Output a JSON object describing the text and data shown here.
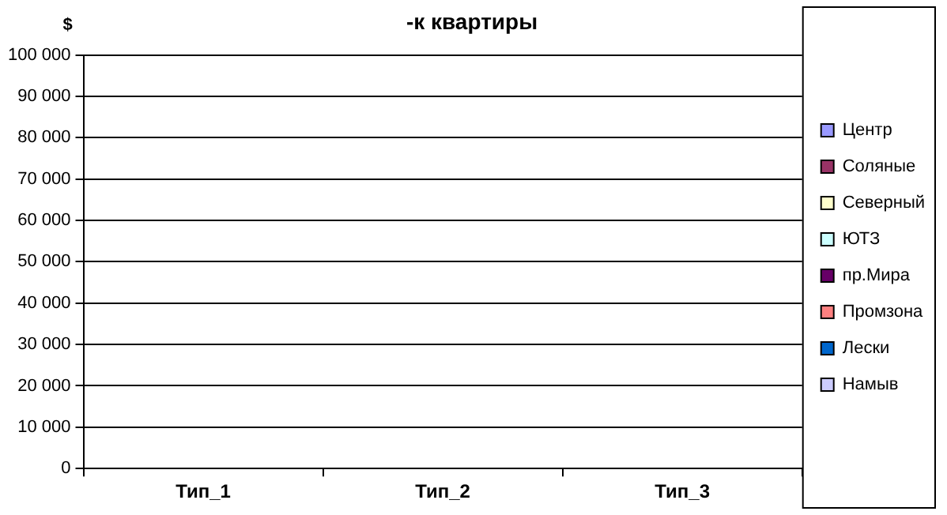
{
  "chart_data": {
    "type": "bar",
    "title": "-к квартиры",
    "ylabel": "$",
    "categories": [
      "Тип_1",
      "Тип_2",
      "Тип_3"
    ],
    "series": [
      {
        "name": "Центр",
        "color": "#9999ff",
        "values": [
          0,
          0,
          0
        ]
      },
      {
        "name": "Соляные",
        "color": "#993366",
        "values": [
          0,
          0,
          0
        ]
      },
      {
        "name": "Северный",
        "color": "#ffffcc",
        "values": [
          0,
          0,
          0
        ]
      },
      {
        "name": "ЮТЗ",
        "color": "#ccffff",
        "values": [
          0,
          0,
          0
        ]
      },
      {
        "name": "пр.Мира",
        "color": "#660066",
        "values": [
          0,
          0,
          0
        ]
      },
      {
        "name": "Промзона",
        "color": "#ff8080",
        "values": [
          0,
          0,
          0
        ]
      },
      {
        "name": "Лески",
        "color": "#0066cc",
        "values": [
          0,
          0,
          0
        ]
      },
      {
        "name": "Намыв",
        "color": "#ccccff",
        "values": [
          0,
          0,
          0
        ]
      }
    ],
    "ylim": [
      0,
      100000
    ],
    "yticks": [
      {
        "value": 0,
        "label": "0"
      },
      {
        "value": 10000,
        "label": "10 000"
      },
      {
        "value": 20000,
        "label": "20 000"
      },
      {
        "value": 30000,
        "label": "30 000"
      },
      {
        "value": 40000,
        "label": "40 000"
      },
      {
        "value": 50000,
        "label": "50 000"
      },
      {
        "value": 60000,
        "label": "60 000"
      },
      {
        "value": 70000,
        "label": "70 000"
      },
      {
        "value": 80000,
        "label": "80 000"
      },
      {
        "value": 90000,
        "label": "90 000"
      },
      {
        "value": 100000,
        "label": "100 000"
      }
    ],
    "grid": "y",
    "legend": "right"
  }
}
